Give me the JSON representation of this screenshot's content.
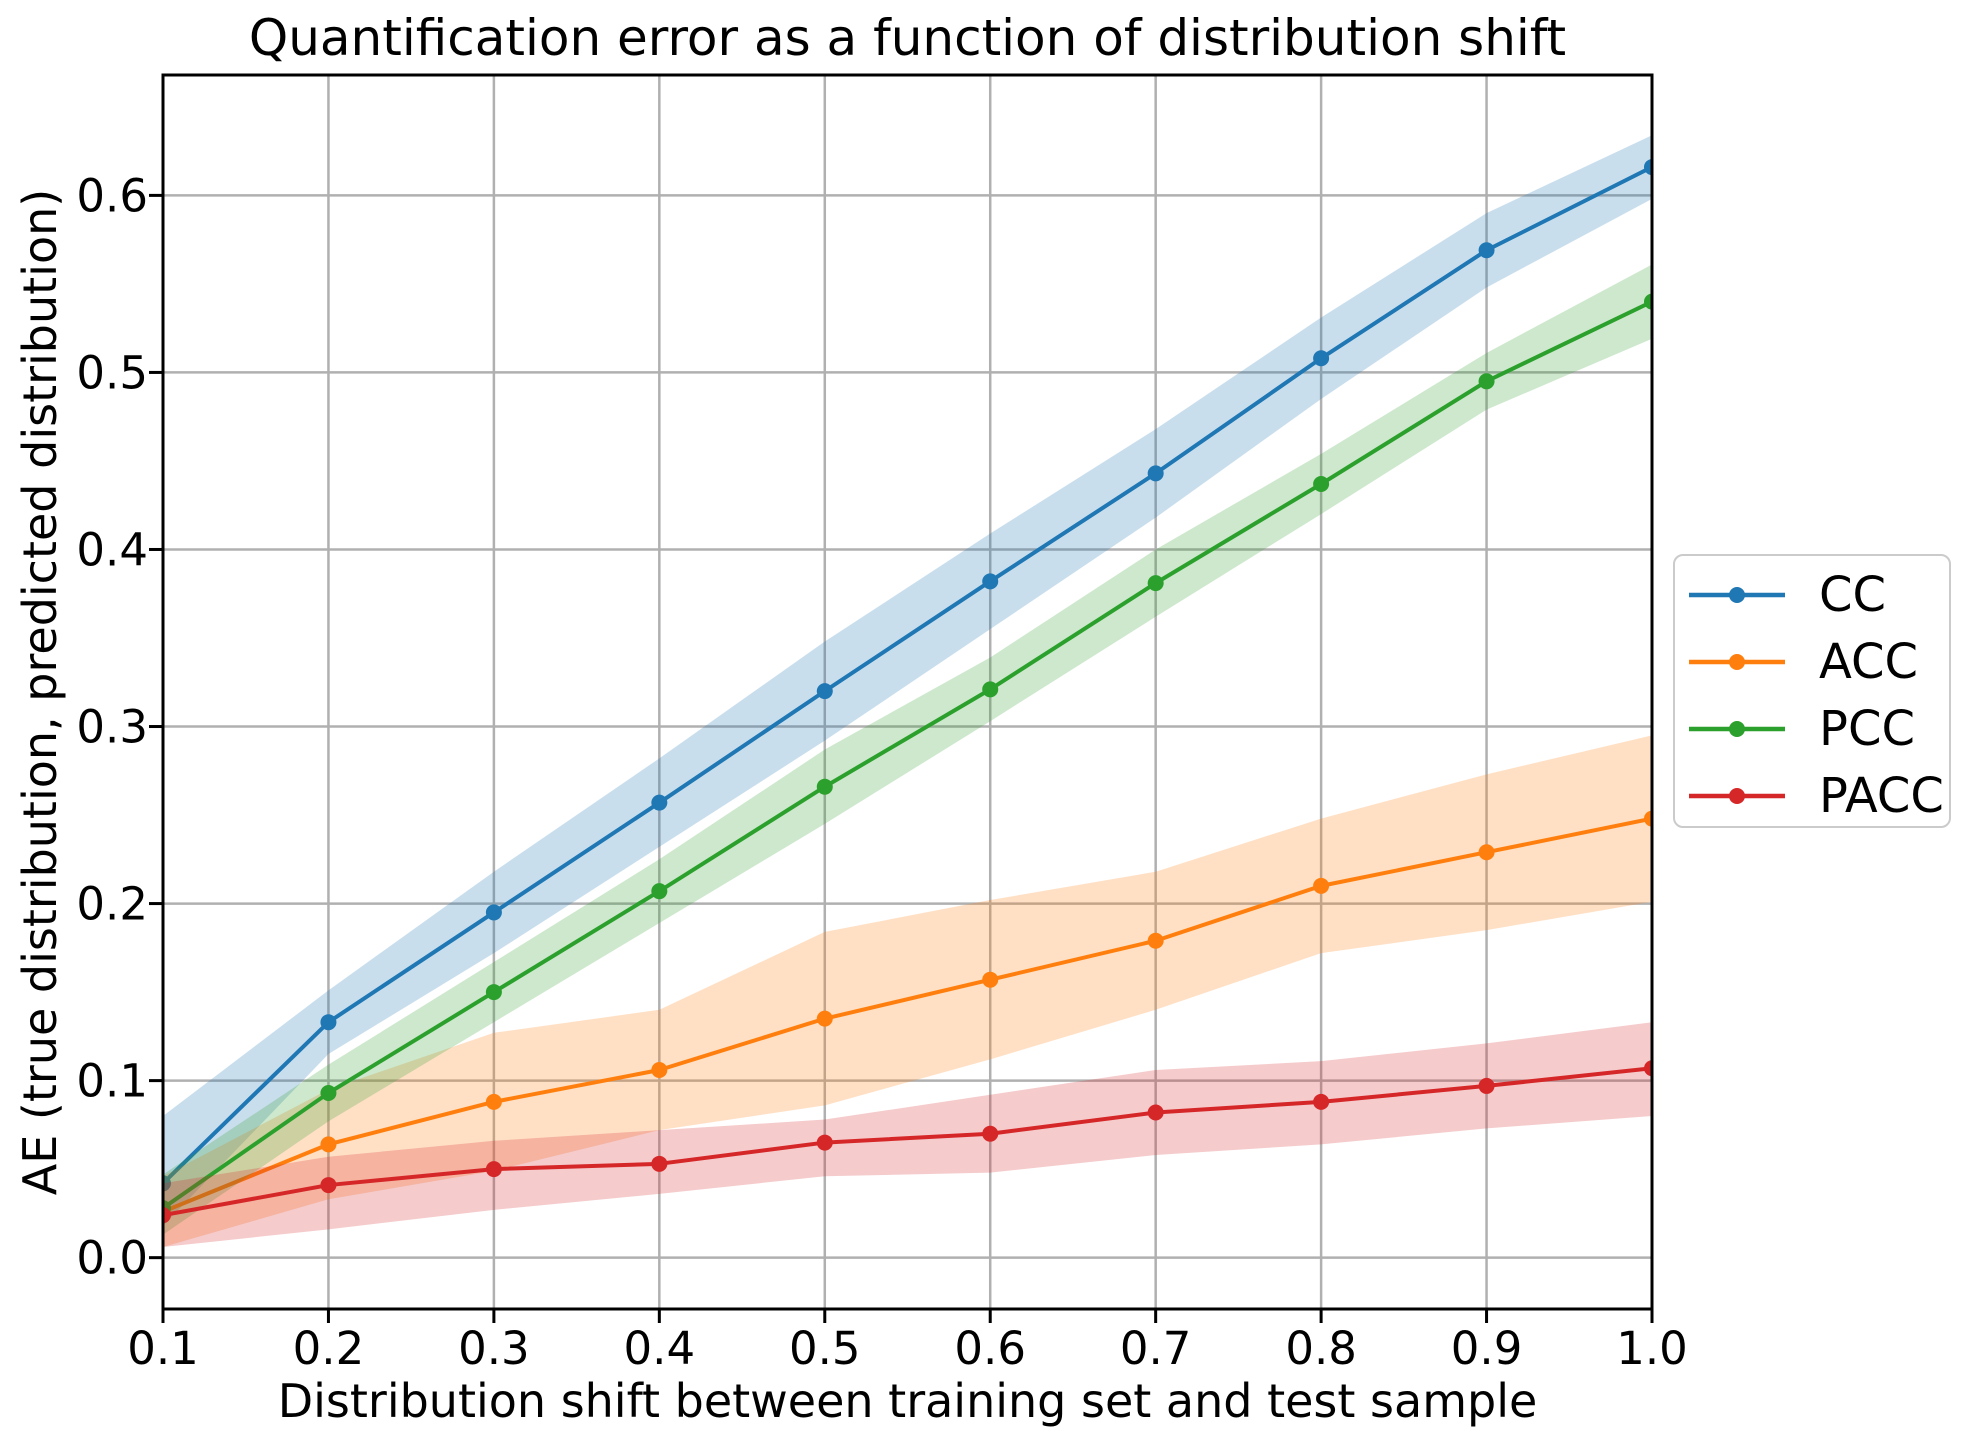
{
  "chart_data": {
    "type": "line",
    "title": "Quantification error as a function of distribution shift",
    "xlabel": "Distribution shift between training set and test sample",
    "ylabel": "AE (true distribution, predicted distribution)",
    "x": [
      0.1,
      0.2,
      0.3,
      0.4,
      0.5,
      0.6,
      0.7,
      0.8,
      0.9,
      1.0
    ],
    "xlim": [
      0.1,
      1.0
    ],
    "ylim": [
      -0.029,
      0.668
    ],
    "xtick_labels": [
      "0.1",
      "0.2",
      "0.3",
      "0.4",
      "0.5",
      "0.6",
      "0.7",
      "0.8",
      "0.9",
      "1.0"
    ],
    "ytick_labels": [
      "0.0",
      "0.1",
      "0.2",
      "0.3",
      "0.4",
      "0.5",
      "0.6"
    ],
    "grid": true,
    "grid_color": "#b0b0b0",
    "spine_color": "#000000",
    "band_alpha": 0.24,
    "legend_position": "right-outside",
    "series": [
      {
        "name": "CC",
        "color": "#1f77b4",
        "values": [
          0.042,
          0.133,
          0.195,
          0.257,
          0.32,
          0.382,
          0.443,
          0.508,
          0.569,
          0.616
        ],
        "band_lower": [
          0.018,
          0.115,
          0.172,
          0.232,
          0.292,
          0.355,
          0.418,
          0.485,
          0.548,
          0.598
        ],
        "band_upper": [
          0.08,
          0.151,
          0.218,
          0.282,
          0.348,
          0.409,
          0.468,
          0.531,
          0.59,
          0.634
        ]
      },
      {
        "name": "ACC",
        "color": "#ff7f0e",
        "values": [
          0.026,
          0.064,
          0.088,
          0.106,
          0.135,
          0.157,
          0.179,
          0.21,
          0.229,
          0.248
        ],
        "band_lower": [
          0.006,
          0.033,
          0.049,
          0.072,
          0.086,
          0.112,
          0.14,
          0.172,
          0.185,
          0.201
        ],
        "band_upper": [
          0.046,
          0.095,
          0.127,
          0.14,
          0.184,
          0.202,
          0.218,
          0.248,
          0.273,
          0.295
        ]
      },
      {
        "name": "PCC",
        "color": "#2ca02c",
        "values": [
          0.028,
          0.093,
          0.15,
          0.207,
          0.266,
          0.321,
          0.381,
          0.437,
          0.495,
          0.54
        ],
        "band_lower": [
          0.013,
          0.077,
          0.133,
          0.189,
          0.245,
          0.303,
          0.362,
          0.42,
          0.479,
          0.519
        ],
        "band_upper": [
          0.047,
          0.109,
          0.167,
          0.225,
          0.287,
          0.339,
          0.4,
          0.454,
          0.511,
          0.561
        ]
      },
      {
        "name": "PACC",
        "color": "#d62728",
        "values": [
          0.024,
          0.041,
          0.05,
          0.053,
          0.065,
          0.07,
          0.082,
          0.088,
          0.097,
          0.107
        ],
        "band_lower": [
          0.006,
          0.016,
          0.027,
          0.036,
          0.046,
          0.048,
          0.058,
          0.064,
          0.073,
          0.08
        ],
        "band_upper": [
          0.042,
          0.057,
          0.066,
          0.072,
          0.078,
          0.092,
          0.106,
          0.111,
          0.121,
          0.133
        ]
      }
    ],
    "legend_entries": [
      "CC",
      "ACC",
      "PCC",
      "PACC"
    ]
  }
}
